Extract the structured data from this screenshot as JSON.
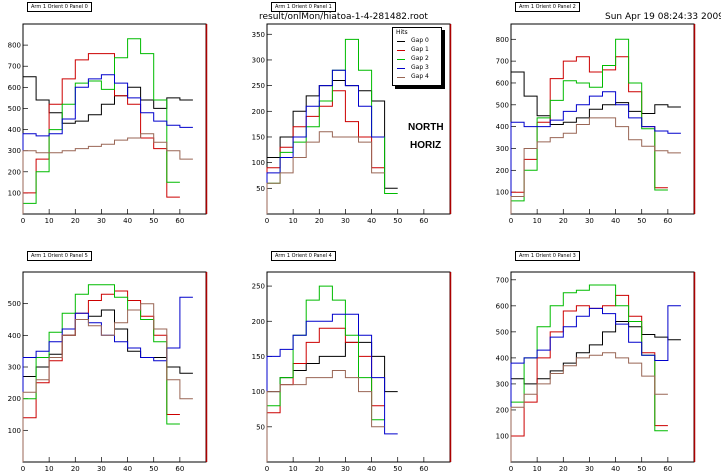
{
  "file_name": "result/onlMon/hiatoa-1-4-281482.root",
  "datetime": "Sun Apr 19 08:24:33 2009",
  "annotations": [
    "NORTH",
    "HORIZ"
  ],
  "legend": {
    "header": "Hits",
    "entries": [
      {
        "label": "Gap 0",
        "color": "#000000"
      },
      {
        "label": "Gap 1",
        "color": "#cc0000"
      },
      {
        "label": "Gap 2",
        "color": "#00bb00"
      },
      {
        "label": "Gap 3",
        "color": "#0000cc"
      },
      {
        "label": "Gap 4",
        "color": "#996655"
      }
    ]
  },
  "chart_data": [
    {
      "type": "line",
      "title": "Arm 1 Orient 0 Panel 0",
      "xlim": [
        0,
        70
      ],
      "ylim": [
        0,
        900
      ],
      "xticks": [
        0,
        10,
        20,
        30,
        40,
        50,
        60
      ],
      "yticks": [
        100,
        200,
        300,
        400,
        500,
        600,
        700,
        800
      ],
      "x": [
        0,
        5,
        10,
        15,
        20,
        25,
        30,
        35,
        40,
        45,
        50,
        55,
        60
      ],
      "series": [
        {
          "name": "Gap 0",
          "values": [
            650,
            540,
            480,
            430,
            440,
            470,
            520,
            560,
            600,
            540,
            500,
            550,
            540
          ]
        },
        {
          "name": "Gap 1",
          "values": [
            100,
            260,
            520,
            640,
            730,
            760,
            760,
            560,
            520,
            360,
            310,
            80,
            null
          ]
        },
        {
          "name": "Gap 2",
          "values": [
            50,
            200,
            400,
            520,
            620,
            630,
            590,
            740,
            830,
            760,
            540,
            150,
            null
          ]
        },
        {
          "name": "Gap 3",
          "values": [
            380,
            370,
            380,
            450,
            600,
            640,
            660,
            620,
            550,
            480,
            440,
            420,
            410
          ]
        },
        {
          "name": "Gap 4",
          "values": [
            300,
            290,
            290,
            300,
            310,
            320,
            330,
            350,
            360,
            380,
            340,
            300,
            260
          ]
        }
      ]
    },
    {
      "type": "line",
      "title": "Arm 1 Orient 0 Panel 1",
      "xlim": [
        0,
        70
      ],
      "ylim": [
        0,
        370
      ],
      "xticks": [
        0,
        10,
        20,
        30,
        40,
        50,
        60
      ],
      "yticks": [
        50,
        100,
        150,
        200,
        250,
        300,
        350
      ],
      "x": [
        0,
        5,
        10,
        15,
        20,
        25,
        30,
        35,
        40,
        45
      ],
      "series": [
        {
          "name": "Gap 0",
          "values": [
            110,
            150,
            200,
            230,
            250,
            260,
            250,
            240,
            220,
            50
          ]
        },
        {
          "name": "Gap 1",
          "values": [
            90,
            130,
            170,
            190,
            210,
            240,
            180,
            150,
            90,
            null
          ]
        },
        {
          "name": "Gap 2",
          "values": [
            60,
            120,
            140,
            170,
            220,
            280,
            340,
            280,
            150,
            40
          ]
        },
        {
          "name": "Gap 3",
          "values": [
            80,
            110,
            150,
            210,
            250,
            280,
            250,
            210,
            150,
            null
          ]
        },
        {
          "name": "Gap 4",
          "values": [
            60,
            80,
            110,
            140,
            160,
            150,
            150,
            140,
            80,
            null
          ]
        }
      ]
    },
    {
      "type": "line",
      "title": "Arm 1 Orient 0 Panel 2",
      "xlim": [
        0,
        70
      ],
      "ylim": [
        0,
        870
      ],
      "xticks": [
        0,
        10,
        20,
        30,
        40,
        50,
        60
      ],
      "yticks": [
        100,
        200,
        300,
        400,
        500,
        600,
        700,
        800
      ],
      "x": [
        0,
        5,
        10,
        15,
        20,
        25,
        30,
        35,
        40,
        45,
        50,
        55,
        60
      ],
      "series": [
        {
          "name": "Gap 0",
          "values": [
            650,
            540,
            450,
            410,
            420,
            440,
            480,
            500,
            510,
            470,
            460,
            500,
            490
          ]
        },
        {
          "name": "Gap 1",
          "values": [
            100,
            250,
            420,
            620,
            700,
            720,
            650,
            660,
            720,
            560,
            400,
            120,
            null
          ]
        },
        {
          "name": "Gap 2",
          "values": [
            60,
            200,
            440,
            520,
            610,
            600,
            580,
            680,
            800,
            600,
            390,
            110,
            null
          ]
        },
        {
          "name": "Gap 3",
          "values": [
            420,
            400,
            400,
            430,
            470,
            500,
            540,
            560,
            500,
            440,
            400,
            380,
            370
          ]
        },
        {
          "name": "Gap 4",
          "values": [
            80,
            300,
            330,
            350,
            370,
            410,
            440,
            440,
            400,
            340,
            310,
            290,
            280
          ]
        }
      ]
    },
    {
      "type": "line",
      "title": "Arm 1 Orient 0 Panel 5",
      "xlim": [
        0,
        70
      ],
      "ylim": [
        0,
        600
      ],
      "xticks": [
        0,
        10,
        20,
        30,
        40,
        50,
        60
      ],
      "yticks": [
        100,
        200,
        300,
        400,
        500
      ],
      "x": [
        0,
        5,
        10,
        15,
        20,
        25,
        30,
        35,
        40,
        45,
        50,
        55,
        60
      ],
      "series": [
        {
          "name": "Gap 0",
          "values": [
            270,
            300,
            340,
            400,
            450,
            460,
            480,
            420,
            350,
            330,
            330,
            300,
            280
          ]
        },
        {
          "name": "Gap 1",
          "values": [
            140,
            250,
            320,
            400,
            470,
            510,
            530,
            540,
            510,
            460,
            400,
            150,
            null
          ]
        },
        {
          "name": "Gap 2",
          "values": [
            200,
            330,
            410,
            470,
            530,
            560,
            560,
            520,
            480,
            450,
            380,
            120,
            null
          ]
        },
        {
          "name": "Gap 3",
          "values": [
            330,
            350,
            380,
            420,
            470,
            440,
            400,
            380,
            360,
            330,
            320,
            360,
            520
          ]
        },
        {
          "name": "Gap 4",
          "values": [
            220,
            260,
            330,
            400,
            450,
            430,
            400,
            440,
            480,
            500,
            420,
            260,
            200
          ]
        }
      ]
    },
    {
      "type": "line",
      "title": "Arm 1 Orient 0 Panel 4",
      "xlim": [
        0,
        70
      ],
      "ylim": [
        0,
        270
      ],
      "xticks": [
        0,
        10,
        20,
        30,
        40,
        50,
        60
      ],
      "yticks": [
        50,
        100,
        150,
        200,
        250
      ],
      "x": [
        0,
        5,
        10,
        15,
        20,
        25,
        30,
        35,
        40,
        45
      ],
      "series": [
        {
          "name": "Gap 0",
          "values": [
            100,
            120,
            130,
            140,
            150,
            150,
            170,
            170,
            150,
            100
          ]
        },
        {
          "name": "Gap 1",
          "values": [
            70,
            110,
            140,
            170,
            190,
            190,
            170,
            150,
            80,
            null
          ]
        },
        {
          "name": "Gap 2",
          "values": [
            80,
            120,
            180,
            230,
            250,
            230,
            180,
            120,
            60,
            null
          ]
        },
        {
          "name": "Gap 3",
          "values": [
            150,
            160,
            180,
            200,
            200,
            210,
            210,
            180,
            120,
            40
          ]
        },
        {
          "name": "Gap 4",
          "values": [
            100,
            110,
            110,
            120,
            120,
            130,
            120,
            100,
            50,
            null
          ]
        }
      ]
    },
    {
      "type": "line",
      "title": "Arm 1 Orient 0 Panel 3",
      "xlim": [
        0,
        70
      ],
      "ylim": [
        0,
        730
      ],
      "xticks": [
        0,
        10,
        20,
        30,
        40,
        50,
        60
      ],
      "yticks": [
        100,
        200,
        300,
        400,
        500,
        600,
        700
      ],
      "x": [
        0,
        5,
        10,
        15,
        20,
        25,
        30,
        35,
        40,
        45,
        50,
        55,
        60
      ],
      "series": [
        {
          "name": "Gap 0",
          "values": [
            320,
            300,
            320,
            350,
            380,
            420,
            450,
            500,
            540,
            520,
            490,
            480,
            470
          ]
        },
        {
          "name": "Gap 1",
          "values": [
            100,
            230,
            400,
            500,
            580,
            600,
            590,
            600,
            640,
            560,
            420,
            140,
            null
          ]
        },
        {
          "name": "Gap 2",
          "values": [
            230,
            400,
            520,
            600,
            650,
            660,
            680,
            680,
            600,
            540,
            410,
            120,
            null
          ]
        },
        {
          "name": "Gap 3",
          "values": [
            380,
            400,
            430,
            480,
            520,
            560,
            590,
            570,
            530,
            460,
            410,
            390,
            600
          ]
        },
        {
          "name": "Gap 4",
          "values": [
            210,
            260,
            300,
            340,
            370,
            400,
            410,
            420,
            400,
            380,
            330,
            260,
            null
          ]
        }
      ]
    }
  ]
}
